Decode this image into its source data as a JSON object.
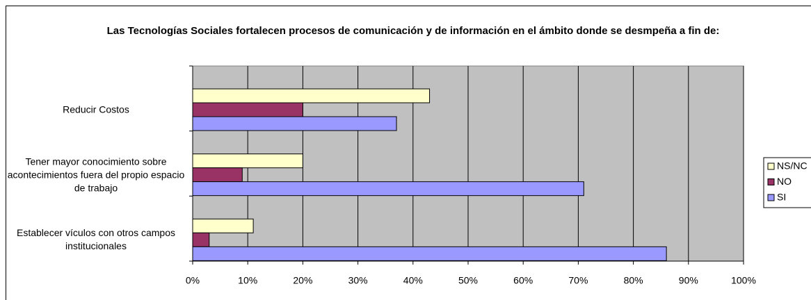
{
  "chart_data": {
    "type": "barh",
    "title": "Las Tecnologías Sociales fortalecen procesos de comunicación y de información en el ámbito donde se desmpeña a fin de:",
    "categories": [
      "Reducir Costos",
      "Tener mayor conocimiento sobre acontecimientos fuera del propio espacio de trabajo",
      "Establecer vículos con otros campos institucionales"
    ],
    "series": [
      {
        "name": "NS/NC",
        "color": "#ffffcc",
        "values": [
          43,
          20,
          11
        ]
      },
      {
        "name": "NO",
        "color": "#993366",
        "values": [
          20,
          9,
          3
        ]
      },
      {
        "name": "SI",
        "color": "#9999ff",
        "values": [
          37,
          71,
          86
        ]
      }
    ],
    "xlim": [
      0,
      100
    ],
    "xticks": [
      {
        "value": 0,
        "label": "0%"
      },
      {
        "value": 10,
        "label": "10%"
      },
      {
        "value": 20,
        "label": "20%"
      },
      {
        "value": 30,
        "label": "30%"
      },
      {
        "value": 40,
        "label": "40%"
      },
      {
        "value": 50,
        "label": "50%"
      },
      {
        "value": 60,
        "label": "60%"
      },
      {
        "value": 70,
        "label": "70%"
      },
      {
        "value": 80,
        "label": "80%"
      },
      {
        "value": 90,
        "label": "90%"
      },
      {
        "value": 100,
        "label": "100%"
      }
    ],
    "grid": true,
    "legend": "right"
  }
}
